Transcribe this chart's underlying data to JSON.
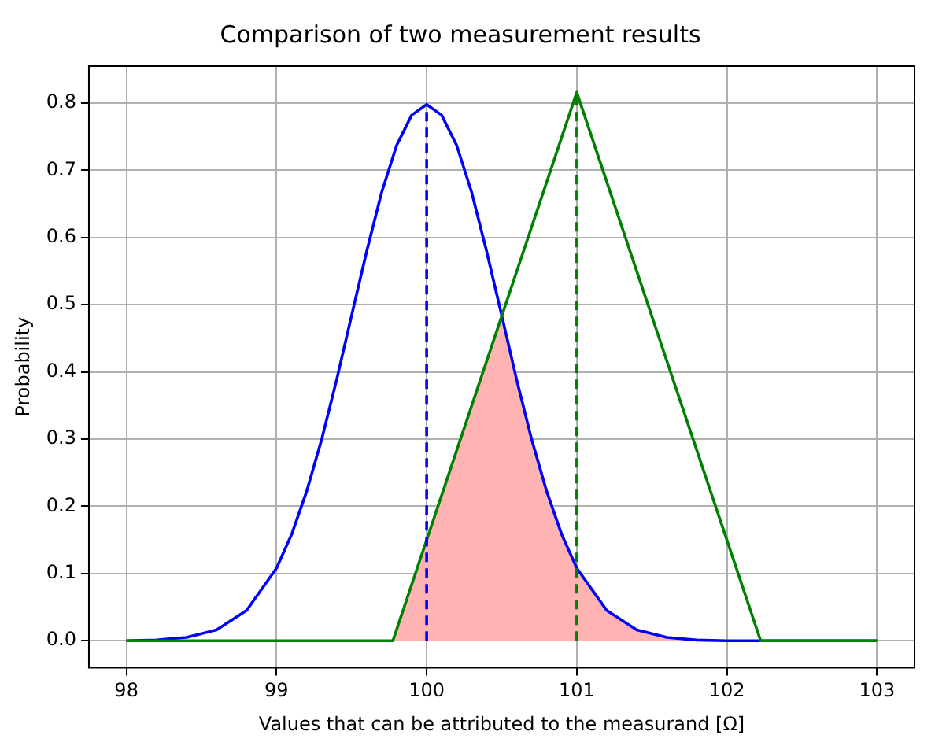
{
  "chart_data": {
    "type": "line",
    "title": "Comparison of two measurement results",
    "xlabel": "Values that can be attributed to the measurand [Ω]",
    "ylabel": "Probability",
    "series": [
      {
        "type": "area",
        "color": "#ffb3b3",
        "x": [
          99.775,
          99.8,
          99.9,
          100,
          100.1,
          100.2,
          100.3,
          100.4,
          100.5,
          100.6,
          100.7,
          100.8,
          100.9,
          101,
          101.2,
          101.4,
          101.6,
          101.8,
          102.2
        ],
        "values": [
          0,
          0.017,
          0.083,
          0.15,
          0.216,
          0.283,
          0.35,
          0.416,
          0.483,
          0.388,
          0.299,
          0.222,
          0.158,
          0.108,
          0.045,
          0.016,
          0.005,
          0.001,
          0
        ]
      },
      {
        "type": "line",
        "color": "#0000ff",
        "line_style": "solid",
        "x": [
          98,
          98.2,
          98.4,
          98.6,
          98.8,
          99,
          99.1,
          99.2,
          99.3,
          99.4,
          99.5,
          99.6,
          99.7,
          99.8,
          99.9,
          100,
          100.1,
          100.2,
          100.3,
          100.4,
          100.5,
          100.6,
          100.7,
          100.8,
          100.9,
          101,
          101.2,
          101.4,
          101.6,
          101.8,
          102,
          102.5,
          103
        ],
        "values": [
          0,
          0.001,
          0.005,
          0.016,
          0.045,
          0.108,
          0.158,
          0.222,
          0.299,
          0.388,
          0.484,
          0.579,
          0.667,
          0.737,
          0.782,
          0.798,
          0.782,
          0.737,
          0.667,
          0.579,
          0.484,
          0.388,
          0.299,
          0.222,
          0.158,
          0.108,
          0.045,
          0.016,
          0.005,
          0.001,
          0,
          0,
          0
        ]
      },
      {
        "type": "line",
        "color": "#008000",
        "line_style": "solid",
        "x": [
          98,
          99.775,
          101,
          102.225,
          103
        ],
        "values": [
          0,
          0,
          0.816,
          0,
          0
        ]
      },
      {
        "type": "line",
        "color": "#0000ff",
        "line_style": "dashed",
        "x": [
          100,
          100
        ],
        "values": [
          0,
          0.798
        ]
      },
      {
        "type": "line",
        "color": "#008000",
        "line_style": "dashed",
        "x": [
          101,
          101
        ],
        "values": [
          0,
          0.816
        ]
      }
    ],
    "xlim": [
      97.75,
      103.25
    ],
    "xticks": [
      98,
      99,
      100,
      101,
      102,
      103
    ],
    "ylim": [
      -0.04,
      0.855
    ],
    "yticks": [
      {
        "value": 0,
        "label": "0.0"
      },
      0.1,
      0.2,
      0.3,
      0.4,
      0.5,
      0.6,
      0.7,
      0.8
    ],
    "grid": true,
    "legend": false,
    "marker": "none"
  }
}
